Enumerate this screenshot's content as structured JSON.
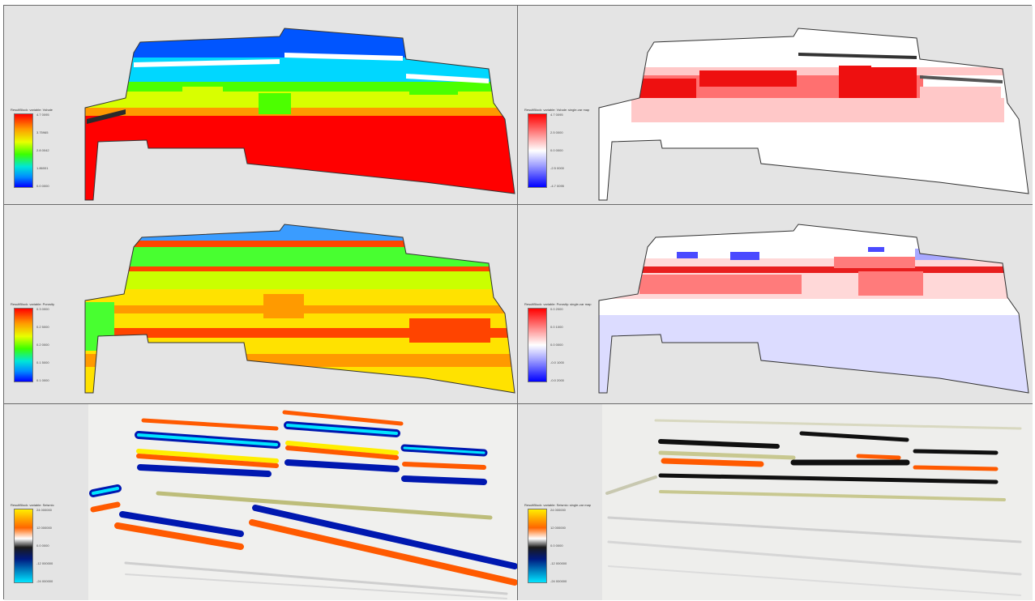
{
  "panels": [
    {
      "id": "top-left",
      "legend_title": "ResultBlock: variable: Vshale",
      "legend_ticks": [
        "4.7 0095",
        "3.75965",
        "2.8 0042",
        "1.86001",
        "0.0 0000"
      ],
      "colormap": "rainbow",
      "content_colors": [
        "#0055ff",
        "#00d7ff",
        "#4cff00",
        "#d8ff00",
        "#ff9900",
        "#ff0000"
      ]
    },
    {
      "id": "top-right",
      "legend_title": "ResultBlock: variable: Vshale: single-var map",
      "legend_ticks": [
        "4.7 0095",
        "2.5 0000",
        "0.0 0000",
        "-2.5 0000",
        "-4.7 0095"
      ],
      "colormap": "diverging",
      "content_colors": [
        "#ffffff",
        "#ffc8c8",
        "#ff7070",
        "#ee1010"
      ]
    },
    {
      "id": "middle-left",
      "legend_title": "ResultBlock: variable: Porosity",
      "legend_ticks": [
        "0.3 0000",
        "0.2 5000",
        "0.2 0000",
        "0.1 5000",
        "0.1 0000"
      ],
      "colormap": "rainbow",
      "content_colors": [
        "#3a9cff",
        "#48ff30",
        "#caff00",
        "#ffe200",
        "#ff9a00",
        "#ff4400"
      ]
    },
    {
      "id": "middle-right",
      "legend_title": "ResultBlock: variable: Porosity: single-var map",
      "legend_ticks": [
        "0.0 2000",
        "0.0 1000",
        "0.0 0000",
        "-0.0 1000",
        "-0.0 2000"
      ],
      "colormap": "diverging",
      "content_colors": [
        "#ffffff",
        "#ffd8d8",
        "#ff7b7b",
        "#e81e1e",
        "#4a4aff",
        "#dcdcff"
      ]
    },
    {
      "id": "bottom-left",
      "legend_title": "ResultBlock: variable: Seismic",
      "legend_ticks": [
        "24 000000",
        "12 000000",
        "0.0 0000",
        "-12 000000",
        "-24 000000"
      ],
      "colormap": "seismic",
      "content_colors": [
        "#00e5ff",
        "#0018b0",
        "#ffee00",
        "#ff5a00",
        "#bdbd7a"
      ]
    },
    {
      "id": "bottom-right",
      "legend_title": "ResultBlock: variable: Seismic: single-var map",
      "legend_ticks": [
        "24 000000",
        "12 000000",
        "0.0 0000",
        "-12 000000",
        "-24 000000"
      ],
      "colormap": "seismic",
      "content_colors": [
        "#101010",
        "#ff5a00",
        "#c8c890",
        "#ffffff"
      ]
    }
  ]
}
